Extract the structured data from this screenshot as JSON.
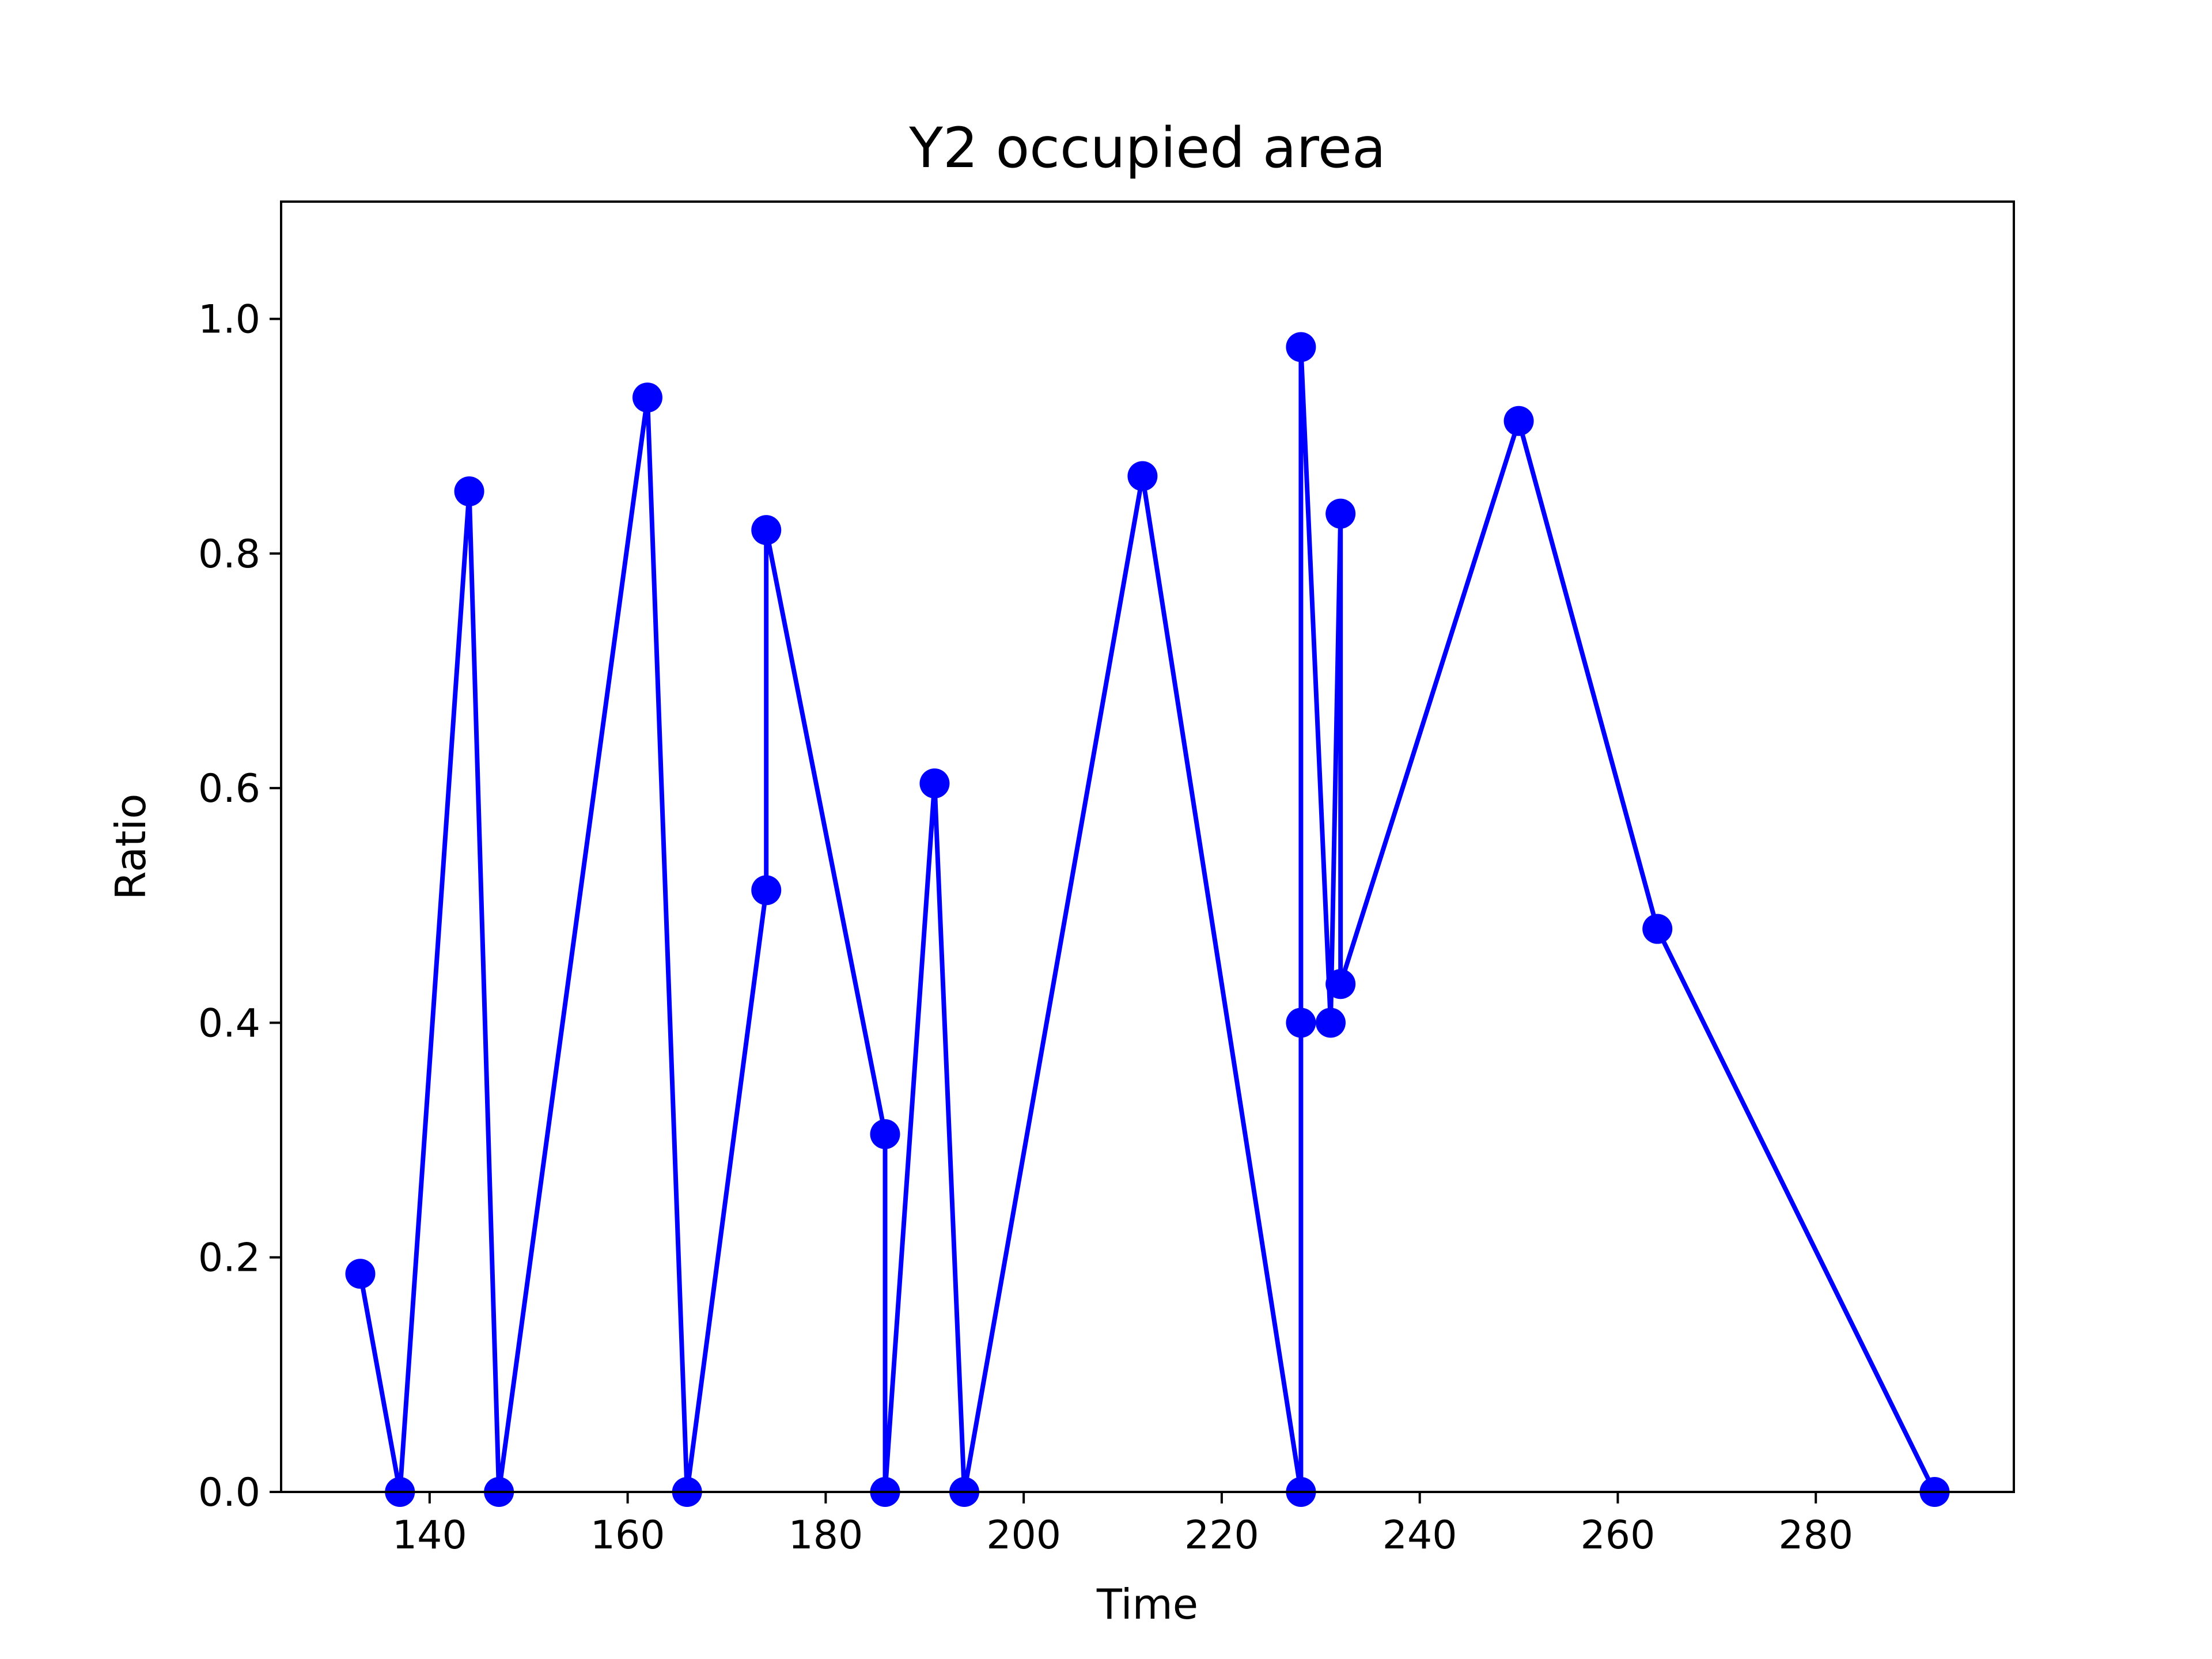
{
  "chart_data": {
    "type": "line",
    "title": "Y2 occupied area",
    "xlabel": "Time",
    "ylabel": "Ratio",
    "xlim": [
      125,
      300
    ],
    "ylim": [
      0,
      1.1
    ],
    "xticks": [
      140,
      160,
      180,
      200,
      220,
      240,
      260,
      280
    ],
    "yticks": [
      0.0,
      0.2,
      0.4,
      0.6,
      0.8,
      1.0
    ],
    "grid": false,
    "legend": "none",
    "series": [
      {
        "color": "#0000ff",
        "marker": "circle",
        "x": [
          133,
          137,
          144,
          147,
          162,
          166,
          174,
          174,
          186,
          186,
          191,
          194,
          212,
          228,
          228,
          228,
          231,
          232,
          232,
          250,
          264,
          292
        ],
        "y": [
          0.186,
          0.0,
          0.853,
          0.0,
          0.933,
          0.0,
          0.513,
          0.82,
          0.305,
          0.0,
          0.604,
          0.0,
          0.866,
          0.0,
          0.4,
          0.976,
          0.4,
          0.834,
          0.433,
          0.913,
          0.48,
          0.0
        ]
      }
    ]
  }
}
